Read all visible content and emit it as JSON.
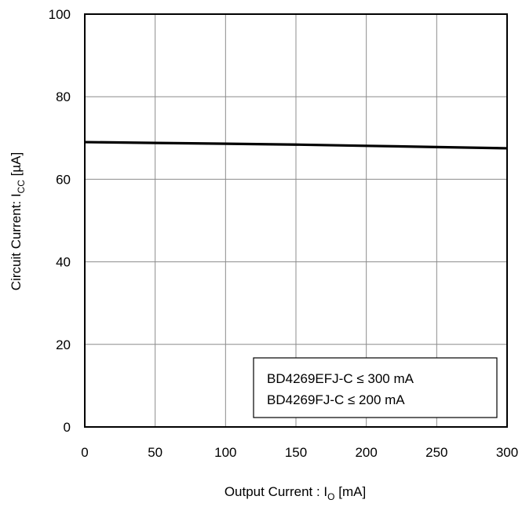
{
  "chart_data": {
    "type": "line",
    "xlabel": {
      "main": "Output Current : I",
      "sub": "O",
      "unit": " [mA]"
    },
    "ylabel": {
      "main": "Circuit Current: I",
      "sub": "CC",
      "unit": " [µA]"
    },
    "xlim": [
      0,
      300
    ],
    "ylim": [
      0,
      100
    ],
    "xticks": [
      "0",
      "50",
      "100",
      "150",
      "200",
      "250",
      "300"
    ],
    "yticks": [
      "0",
      "20",
      "40",
      "60",
      "80",
      "100"
    ],
    "grid": true,
    "legend": {
      "position": "bottom-right",
      "lines": [
        "BD4269EFJ-C ≤ 300 mA",
        "BD4269FJ-C ≤ 200 mA"
      ]
    },
    "series": [
      {
        "x": [
          0,
          50,
          100,
          150,
          200,
          250,
          300
        ],
        "y": [
          69.0,
          68.8,
          68.6,
          68.4,
          68.1,
          67.8,
          67.5
        ]
      }
    ]
  }
}
